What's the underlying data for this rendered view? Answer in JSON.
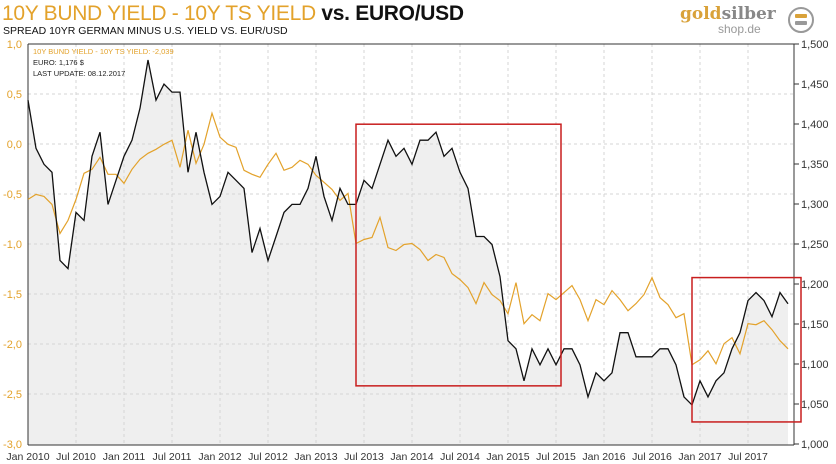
{
  "header": {
    "title_gold": "10Y BUND YIELD - 10Y TS YIELD",
    "title_dark": "vs. EURO/USD",
    "subtitle": "SPREAD 10YR  GERMAN MINUS U.S. YIELD VS. EUR/USD"
  },
  "logo": {
    "word1": "gold",
    "word2": "silber",
    "word3": "shop.de"
  },
  "colors": {
    "spread": "#e3a22b",
    "eurusd": "#111111",
    "fill": "#efefef",
    "box": "#c81e1e",
    "grid": "#d4d4d4"
  },
  "chart_data": {
    "type": "line",
    "title": "10Y BUND YIELD - 10Y TS YIELD vs. EURO/USD",
    "subtitle": "SPREAD 10YR  GERMAN MINUS U.S. YIELD VS. EUR/USD",
    "annotations": [
      "10Y BUND YIELD - 10Y TS YIELD: -2,039",
      "EURO: 1,176 $",
      "LAST UPDATE: 08.12.2017"
    ],
    "x_start": "Jan 2010",
    "x_step": "month",
    "x_ticks": [
      "Jan 2010",
      "Jul 2010",
      "Jan 2011",
      "Jul 2011",
      "Jan 2012",
      "Jul 2012",
      "Jan 2013",
      "Jul 2013",
      "Jan 2014",
      "Jul 2014",
      "Jan 2015",
      "Jul 2015",
      "Jan 2016",
      "Jul 2016",
      "Jan 2017",
      "Jul 2017"
    ],
    "y_left": {
      "ticks": [
        "1,0",
        "0,5",
        "0,0",
        "-0,5",
        "-1,0",
        "-1,5",
        "-2,0",
        "-2,5",
        "-3,0"
      ],
      "range": [
        -3.0,
        1.0
      ]
    },
    "y_right": {
      "ticks": [
        "1,500",
        "1,450",
        "1,400",
        "1,350",
        "1,300",
        "1,250",
        "1,200",
        "1,150",
        "1,100",
        "1,050",
        "1,000"
      ],
      "range": [
        1.0,
        1.5
      ]
    },
    "grid": true,
    "series": [
      {
        "name": "10Y Bund Yield - 10Y TS Yield",
        "axis": "left",
        "values": [
          -0.55,
          -0.5,
          -0.52,
          -0.6,
          -0.89,
          -0.76,
          -0.55,
          -0.29,
          -0.25,
          -0.13,
          -0.3,
          -0.3,
          -0.39,
          -0.25,
          -0.15,
          -0.09,
          -0.05,
          0.0,
          0.04,
          -0.23,
          0.14,
          -0.19,
          0.0,
          0.31,
          0.07,
          0.0,
          -0.03,
          -0.26,
          -0.3,
          -0.33,
          -0.2,
          -0.09,
          -0.26,
          -0.23,
          -0.16,
          -0.2,
          -0.31,
          -0.38,
          -0.45,
          -0.56,
          -0.49,
          -0.99,
          -0.95,
          -0.93,
          -0.73,
          -1.03,
          -1.06,
          -1.0,
          -0.99,
          -1.05,
          -1.16,
          -1.1,
          -1.13,
          -1.29,
          -1.35,
          -1.43,
          -1.59,
          -1.38,
          -1.5,
          -1.56,
          -1.69,
          -1.38,
          -1.79,
          -1.7,
          -1.76,
          -1.49,
          -1.55,
          -1.48,
          -1.41,
          -1.55,
          -1.76,
          -1.55,
          -1.6,
          -1.46,
          -1.55,
          -1.66,
          -1.59,
          -1.5,
          -1.33,
          -1.53,
          -1.6,
          -1.73,
          -1.69,
          -2.2,
          -2.15,
          -2.06,
          -2.19,
          -1.99,
          -1.93,
          -2.09,
          -1.79,
          -1.8,
          -1.76,
          -1.85,
          -1.96,
          -2.04
        ]
      },
      {
        "name": "EUR/USD",
        "axis": "right",
        "values": [
          1.43,
          1.37,
          1.35,
          1.34,
          1.23,
          1.22,
          1.29,
          1.28,
          1.36,
          1.39,
          1.3,
          1.33,
          1.36,
          1.38,
          1.42,
          1.48,
          1.43,
          1.45,
          1.44,
          1.44,
          1.34,
          1.39,
          1.34,
          1.3,
          1.31,
          1.34,
          1.33,
          1.32,
          1.24,
          1.27,
          1.23,
          1.26,
          1.29,
          1.3,
          1.3,
          1.32,
          1.36,
          1.31,
          1.28,
          1.32,
          1.3,
          1.3,
          1.33,
          1.32,
          1.35,
          1.38,
          1.36,
          1.37,
          1.35,
          1.38,
          1.38,
          1.39,
          1.36,
          1.37,
          1.34,
          1.32,
          1.26,
          1.26,
          1.25,
          1.21,
          1.13,
          1.12,
          1.08,
          1.12,
          1.1,
          1.12,
          1.1,
          1.12,
          1.12,
          1.1,
          1.06,
          1.09,
          1.08,
          1.09,
          1.14,
          1.14,
          1.11,
          1.11,
          1.11,
          1.12,
          1.12,
          1.1,
          1.06,
          1.05,
          1.08,
          1.06,
          1.08,
          1.09,
          1.12,
          1.14,
          1.18,
          1.19,
          1.18,
          1.16,
          1.19,
          1.176
        ]
      }
    ],
    "highlight_boxes": [
      {
        "from": "Jun 2013",
        "to": "Jun 2015",
        "y_left": [
          -2.41,
          0.2
        ]
      },
      {
        "from": "Dec 2016",
        "to": "Dec 2017",
        "y_left": [
          -2.77,
          -1.33
        ]
      }
    ]
  }
}
